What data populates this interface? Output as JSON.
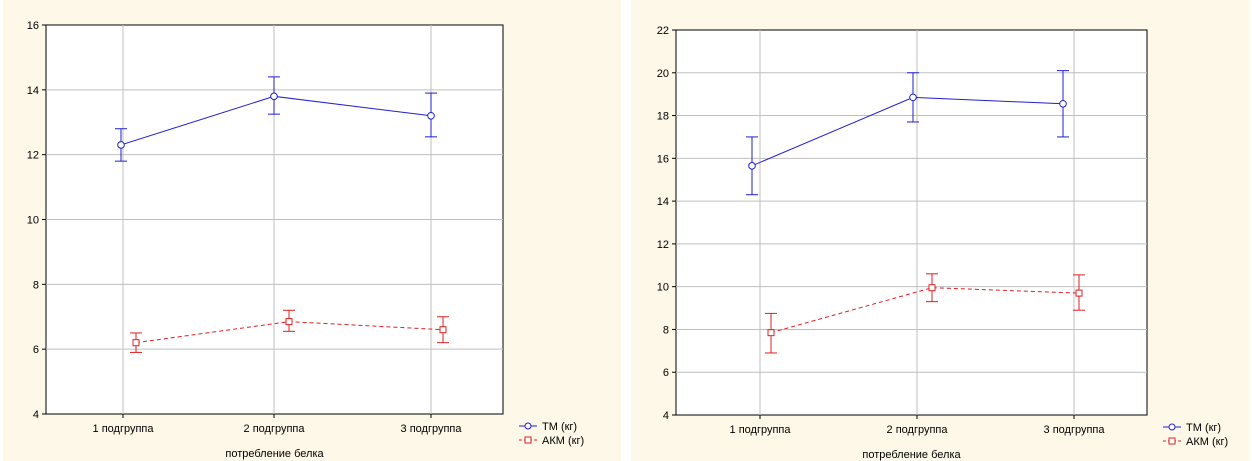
{
  "chart_data": [
    {
      "type": "line",
      "xlabel": "потребление белка",
      "ylabel": "",
      "categories": [
        "1 подгруппа",
        "2 подгруппа",
        "3 подгруппа"
      ],
      "ylim": [
        4,
        16
      ],
      "yticks": [
        "4",
        "6",
        "8",
        "10",
        "12",
        "14",
        "16"
      ],
      "grid": true,
      "legend_position": "bottom-right",
      "series": [
        {
          "name": "ТМ (кг)",
          "color": "#1f1fd0",
          "marker": "circle",
          "line_style": "solid",
          "values": [
            12.3,
            13.8,
            13.2
          ],
          "err_low": [
            11.8,
            13.25,
            12.55
          ],
          "err_high": [
            12.8,
            14.4,
            13.9
          ]
        },
        {
          "name": "АКМ (кг)",
          "color": "#e02020",
          "marker": "square",
          "line_style": "dashed",
          "values": [
            6.2,
            6.85,
            6.6
          ],
          "err_low": [
            5.9,
            6.55,
            6.2
          ],
          "err_high": [
            6.5,
            7.2,
            7.0
          ]
        }
      ]
    },
    {
      "type": "line",
      "xlabel": "потребление белка",
      "ylabel": "",
      "categories": [
        "1 подгруппа",
        "2 подгруппа",
        "3 подгруппа"
      ],
      "ylim": [
        4,
        22
      ],
      "yticks": [
        "4",
        "6",
        "8",
        "10",
        "12",
        "14",
        "16",
        "18",
        "20",
        "22"
      ],
      "grid": true,
      "legend_position": "bottom-right",
      "series": [
        {
          "name": "ТМ (кг)",
          "color": "#1f1fd0",
          "marker": "circle",
          "line_style": "solid",
          "values": [
            15.65,
            18.85,
            18.55
          ],
          "err_low": [
            14.3,
            17.7,
            17.0
          ],
          "err_high": [
            17.0,
            20.0,
            20.1
          ]
        },
        {
          "name": "АКМ (кг)",
          "color": "#e02020",
          "marker": "square",
          "line_style": "dashed",
          "values": [
            7.85,
            9.95,
            9.7
          ],
          "err_low": [
            6.9,
            9.3,
            8.9
          ],
          "err_high": [
            8.75,
            10.6,
            10.55
          ]
        }
      ]
    }
  ],
  "colors": {
    "panel_background": "#fdf8e8",
    "plot_background": "#ffffff",
    "grid": "#bfbfbf"
  }
}
